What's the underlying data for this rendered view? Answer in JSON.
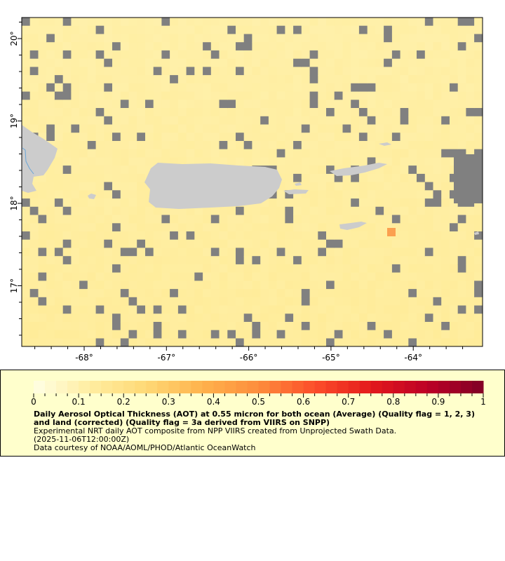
{
  "map": {
    "latitude_labels": [
      "20°",
      "19°",
      "18°",
      "17°"
    ],
    "latitude_values": [
      20,
      19,
      18,
      17
    ],
    "longitude_labels": [
      "-68°",
      "-67°",
      "-66°",
      "-65°",
      "-64°"
    ],
    "longitude_values": [
      -68,
      -67,
      -66,
      -65,
      -64
    ],
    "extent": {
      "lon": [
        -68.75,
        -63.15
      ],
      "lat": [
        16.3,
        20.3
      ]
    },
    "colors": {
      "missing": "#808080",
      "land": "#cccccc",
      "ocean_base": "#fff2b0",
      "river": "#6aa6d8",
      "outline": "#000000"
    }
  },
  "legend": {
    "colorscale": "YlOrRd",
    "range": [
      0,
      1
    ],
    "tick_labels": [
      "0",
      "0.1",
      "0.2",
      "0.3",
      "0.4",
      "0.5",
      "0.6",
      "0.7",
      "0.8",
      "0.9",
      "1"
    ],
    "title": "Daily Aerosol Optical Thickness (AOT) at 0.55 micron for both ocean (Average) (Quality flag = 1, 2, 3) and land (corrected) (Quality flag = 3a derived from VIIRS on SNPP)",
    "description": "Experimental NRT daily AOT composite from NPP VIIRS created from Unprojected Swath Data.",
    "time": "(2025-11-06T12:00:00Z)",
    "credit": "Data courtesy of NOAA/AOML/PHOD/Atlantic OceanWatch",
    "background": "#ffffcc"
  }
}
